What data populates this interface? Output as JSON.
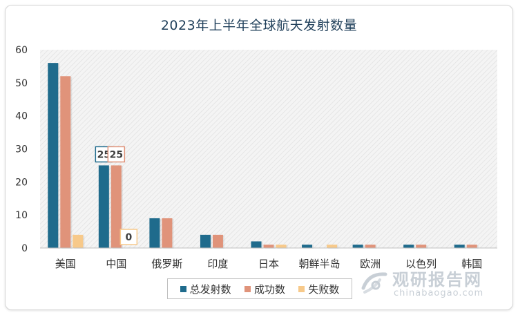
{
  "chart_data": {
    "type": "bar",
    "title": "2023年上半年全球航天发射数量",
    "xlabel": "",
    "ylabel": "",
    "ylim": [
      0,
      60
    ],
    "yticks": [
      0,
      10,
      20,
      30,
      40,
      50,
      60
    ],
    "categories": [
      "美国",
      "中国",
      "俄罗斯",
      "印度",
      "日本",
      "朝鲜半岛",
      "欧洲",
      "以色列",
      "韩国"
    ],
    "series": [
      {
        "name": "总发射数",
        "values": [
          56,
          25,
          9,
          4,
          2,
          1,
          1,
          1,
          1
        ]
      },
      {
        "name": "成功数",
        "values": [
          52,
          25,
          9,
          4,
          1,
          0,
          1,
          1,
          1
        ]
      },
      {
        "name": "失败数",
        "values": [
          4,
          0,
          0,
          0,
          1,
          1,
          0,
          0,
          0
        ]
      }
    ],
    "data_labels": [
      {
        "series": 0,
        "category": 1,
        "text": "25"
      },
      {
        "series": 1,
        "category": 1,
        "text": "25"
      },
      {
        "series": 2,
        "category": 1,
        "text": "0"
      }
    ],
    "colors": [
      "#1f6b8c",
      "#e0937a",
      "#f7c98a"
    ],
    "grid": false,
    "legend": "bottom"
  },
  "watermark": {
    "brand": "观研报告网",
    "url": "chinabaogao.com"
  }
}
